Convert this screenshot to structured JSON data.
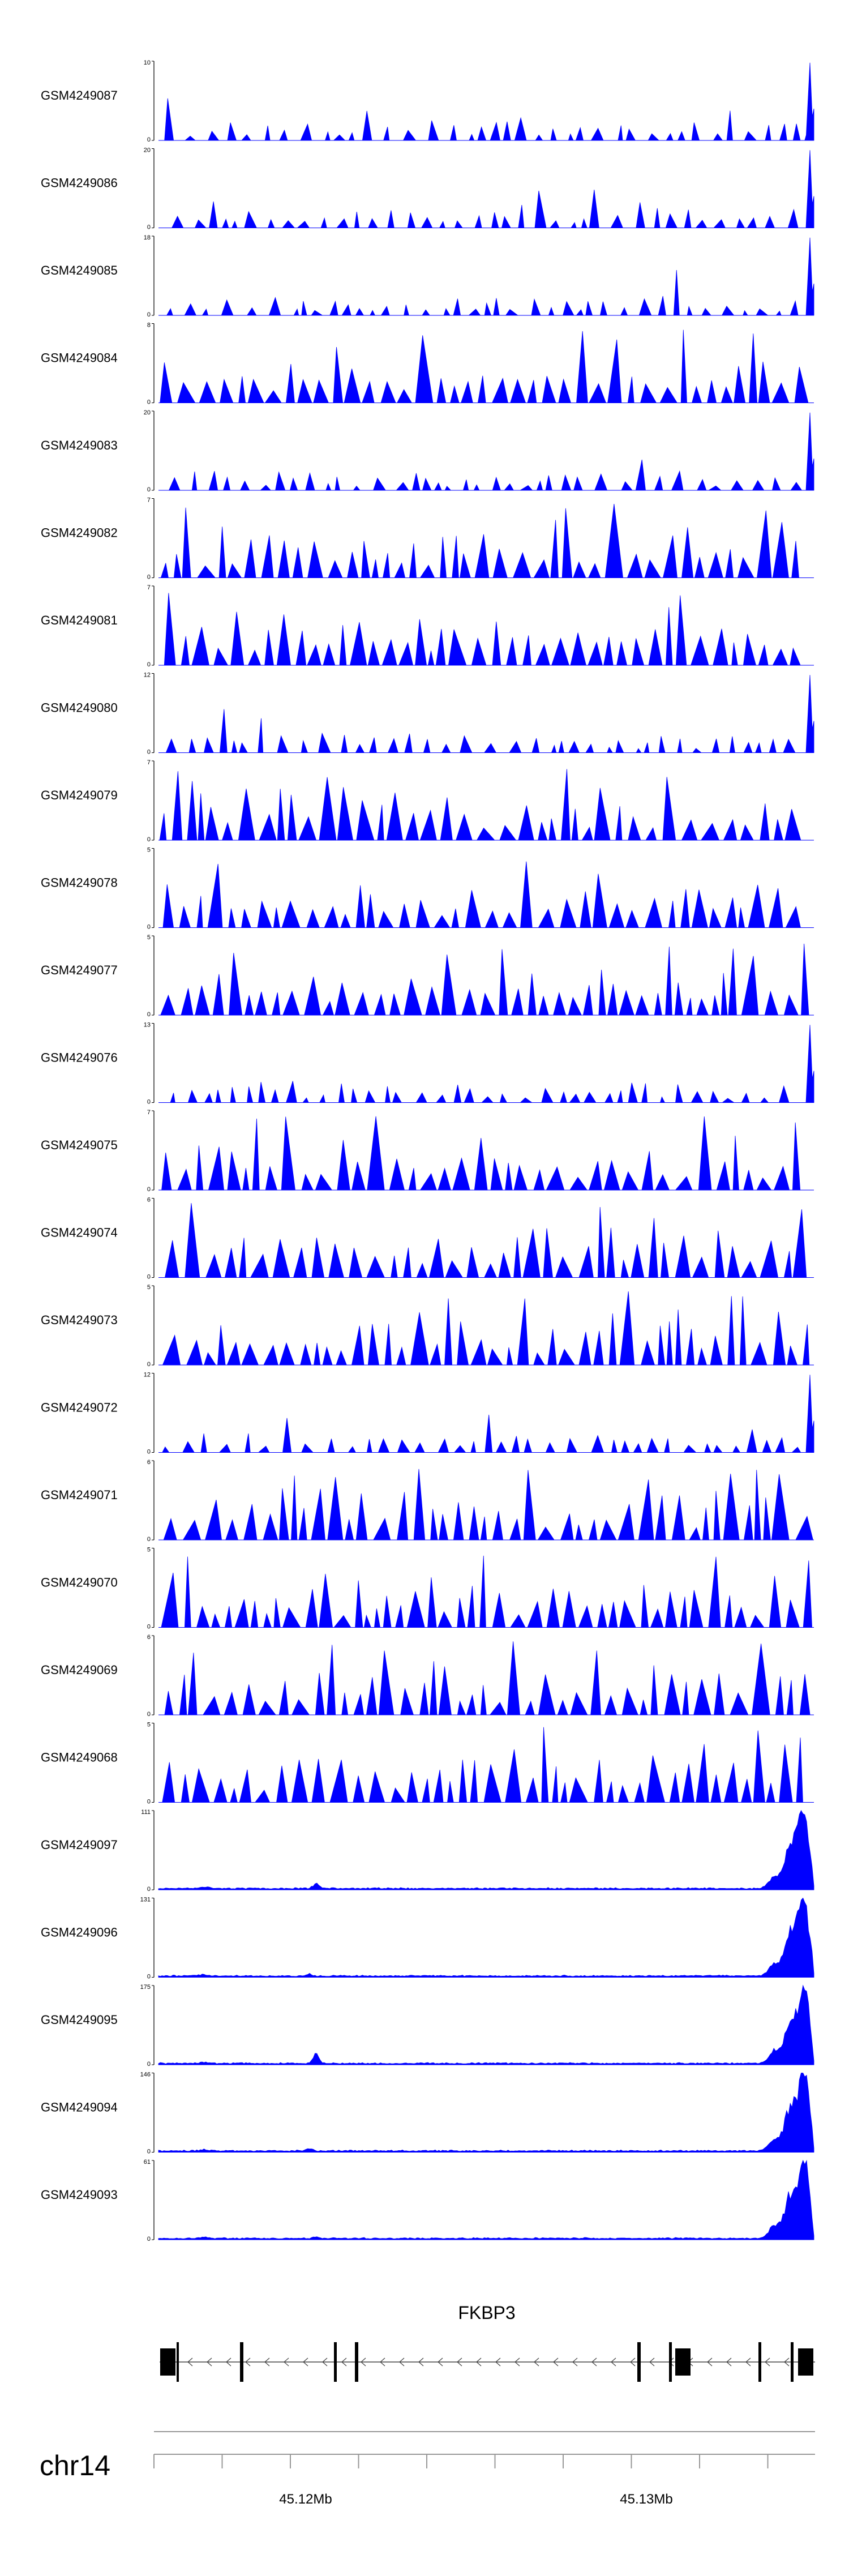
{
  "colors": {
    "signal": "#0000ff",
    "axis": "#000000",
    "gene": "#000000",
    "genome_axis": "#999999"
  },
  "chart_data": {
    "type": "area",
    "chromosome": "chr14",
    "tracks": [
      {
        "name": "GSM4249087",
        "ymax": 10,
        "profile": "sparse"
      },
      {
        "name": "GSM4249086",
        "ymax": 20,
        "profile": "sparse"
      },
      {
        "name": "GSM4249085",
        "ymax": 18,
        "profile": "sparse"
      },
      {
        "name": "GSM4249084",
        "ymax": 8,
        "profile": "dense"
      },
      {
        "name": "GSM4249083",
        "ymax": 20,
        "profile": "sparse"
      },
      {
        "name": "GSM4249082",
        "ymax": 7,
        "profile": "dense"
      },
      {
        "name": "GSM4249081",
        "ymax": 7,
        "profile": "dense"
      },
      {
        "name": "GSM4249080",
        "ymax": 12,
        "profile": "sparse"
      },
      {
        "name": "GSM4249079",
        "ymax": 7,
        "profile": "dense"
      },
      {
        "name": "GSM4249078",
        "ymax": 5,
        "profile": "dense"
      },
      {
        "name": "GSM4249077",
        "ymax": 5,
        "profile": "dense"
      },
      {
        "name": "GSM4249076",
        "ymax": 13,
        "profile": "sparse"
      },
      {
        "name": "GSM4249075",
        "ymax": 7,
        "profile": "dense"
      },
      {
        "name": "GSM4249074",
        "ymax": 6,
        "profile": "dense"
      },
      {
        "name": "GSM4249073",
        "ymax": 5,
        "profile": "dense"
      },
      {
        "name": "GSM4249072",
        "ymax": 12,
        "profile": "sparse"
      },
      {
        "name": "GSM4249071",
        "ymax": 6,
        "profile": "dense"
      },
      {
        "name": "GSM4249070",
        "ymax": 5,
        "profile": "dense"
      },
      {
        "name": "GSM4249069",
        "ymax": 6,
        "profile": "dense"
      },
      {
        "name": "GSM4249068",
        "ymax": 5,
        "profile": "dense"
      },
      {
        "name": "GSM4249097",
        "ymax": 111,
        "profile": "peak"
      },
      {
        "name": "GSM4249096",
        "ymax": 131,
        "profile": "peak"
      },
      {
        "name": "GSM4249095",
        "ymax": 175,
        "profile": "peak"
      },
      {
        "name": "GSM4249094",
        "ymax": 146,
        "profile": "peak"
      },
      {
        "name": "GSM4249093",
        "ymax": 61,
        "profile": "peak"
      }
    ],
    "ymin_label": "0",
    "gene": {
      "name": "FKBP3",
      "strand": "-"
    },
    "x_ticks": [
      "45.12Mb",
      "45.13Mb"
    ],
    "xlabel": ""
  }
}
